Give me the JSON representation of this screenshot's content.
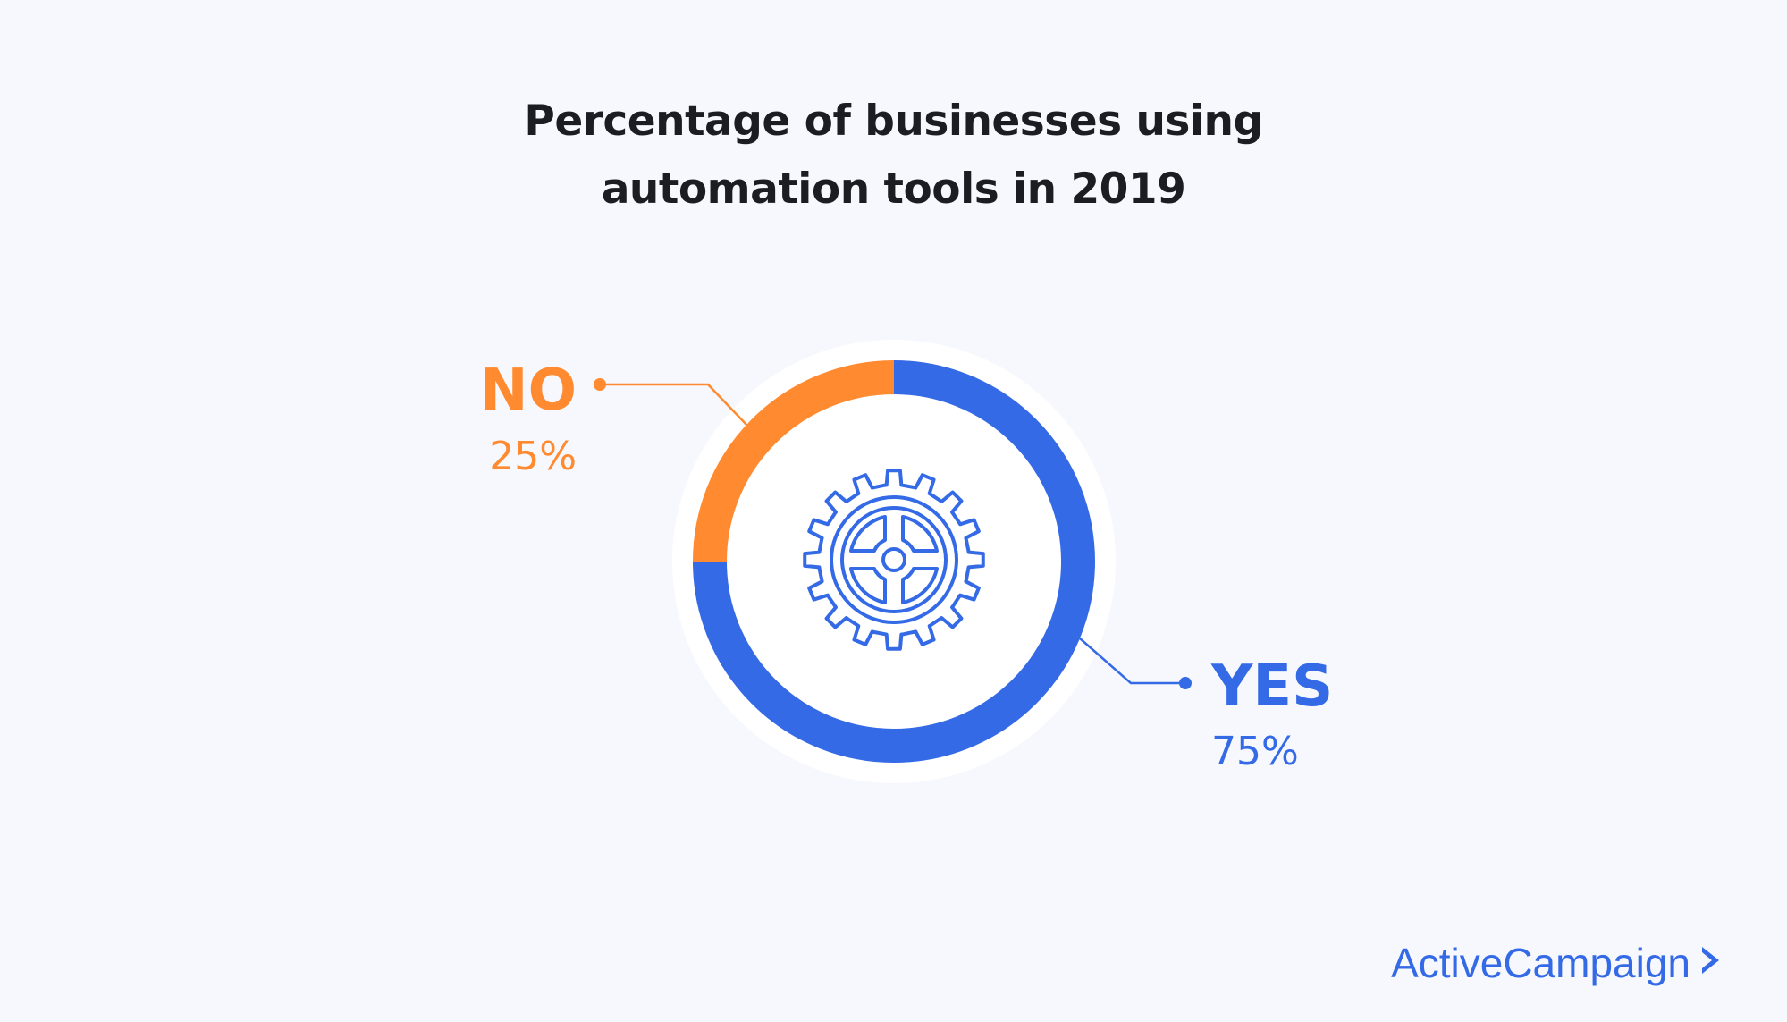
{
  "title": {
    "line1": "Percentage of businesses using",
    "line2": "automation tools in 2019"
  },
  "chart_data": {
    "type": "pie",
    "variant": "donut",
    "title": "Percentage of businesses using automation tools in 2019",
    "slices": [
      {
        "label": "YES",
        "value": 75,
        "value_label": "75%",
        "color": "#356ae6"
      },
      {
        "label": "NO",
        "value": 25,
        "value_label": "25%",
        "color": "#ff8a2f"
      }
    ],
    "center_icon": "gear-icon",
    "legend": "none"
  },
  "colors": {
    "background": "#f6f8fd",
    "title": "#1c1d22",
    "yes": "#356ae6",
    "no": "#ff8a2f"
  },
  "logo": {
    "text": "ActiveCampaign",
    "icon": "chevron-right-icon"
  }
}
